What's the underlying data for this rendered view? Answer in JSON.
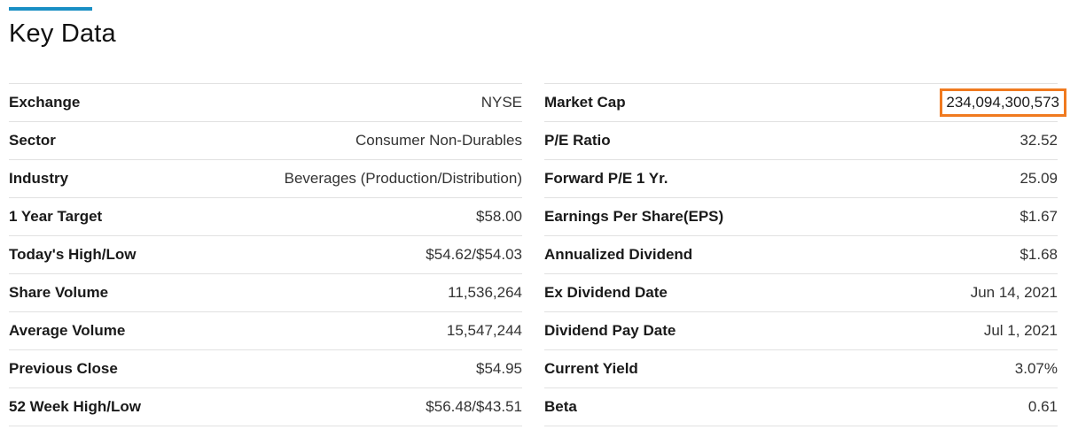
{
  "title": "Key Data",
  "colors": {
    "accent": "#1a8fc4",
    "highlight_border": "#f07a1f"
  },
  "left_rows": [
    {
      "label": "Exchange",
      "value": "NYSE"
    },
    {
      "label": "Sector",
      "value": "Consumer Non-Durables"
    },
    {
      "label": "Industry",
      "value": "Beverages (Production/Distribution)"
    },
    {
      "label": "1 Year Target",
      "value": "$58.00"
    },
    {
      "label": "Today's High/Low",
      "value": "$54.62/$54.03"
    },
    {
      "label": "Share Volume",
      "value": "11,536,264"
    },
    {
      "label": "Average Volume",
      "value": "15,547,244"
    },
    {
      "label": "Previous Close",
      "value": "$54.95"
    },
    {
      "label": "52 Week High/Low",
      "value": "$56.48/$43.51"
    }
  ],
  "right_rows": [
    {
      "label": "Market Cap",
      "value": "234,094,300,573"
    },
    {
      "label": "P/E Ratio",
      "value": "32.52"
    },
    {
      "label": "Forward P/E 1 Yr.",
      "value": "25.09"
    },
    {
      "label": "Earnings Per Share(EPS)",
      "value": "$1.67"
    },
    {
      "label": "Annualized Dividend",
      "value": "$1.68"
    },
    {
      "label": "Ex Dividend Date",
      "value": "Jun 14, 2021"
    },
    {
      "label": "Dividend Pay Date",
      "value": "Jul 1, 2021"
    },
    {
      "label": "Current Yield",
      "value": "3.07%"
    },
    {
      "label": "Beta",
      "value": "0.61"
    }
  ]
}
